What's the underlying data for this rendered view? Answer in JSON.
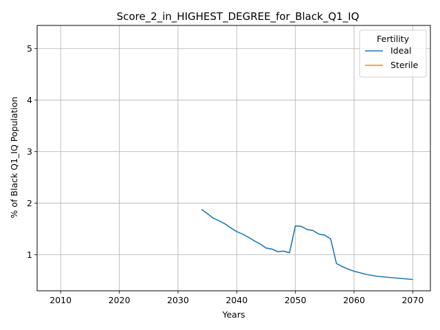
{
  "chart_data": {
    "type": "line",
    "title": "Score_2_in_HIGHEST_DEGREE_for_Black_Q1_IQ",
    "xlabel": "Years",
    "ylabel": "% of Black Q1_IQ Population",
    "xlim": [
      2006,
      2073
    ],
    "ylim": [
      0.3,
      5.45
    ],
    "xticks": [
      2010,
      2020,
      2030,
      2040,
      2050,
      2060,
      2070
    ],
    "yticks": [
      1,
      2,
      3,
      4,
      5
    ],
    "grid": true,
    "legend": {
      "title": "Fertility",
      "position": "top-right"
    },
    "series": [
      {
        "name": "Ideal",
        "color": "#1f77b4",
        "x": [
          2034,
          2035,
          2036,
          2037,
          2038,
          2039,
          2040,
          2041,
          2042,
          2043,
          2044,
          2045,
          2046,
          2047,
          2048,
          2049,
          2050,
          2051,
          2052,
          2053,
          2054,
          2055,
          2056,
          2057,
          2058,
          2059,
          2060,
          2061,
          2062,
          2063,
          2064,
          2065,
          2066,
          2067,
          2068,
          2069,
          2070
        ],
        "y": [
          1.88,
          1.8,
          1.71,
          1.66,
          1.6,
          1.52,
          1.45,
          1.4,
          1.34,
          1.27,
          1.21,
          1.13,
          1.11,
          1.06,
          1.07,
          1.04,
          1.56,
          1.55,
          1.49,
          1.47,
          1.4,
          1.38,
          1.31,
          0.83,
          0.77,
          0.72,
          0.68,
          0.65,
          0.62,
          0.6,
          0.58,
          0.57,
          0.56,
          0.55,
          0.54,
          0.53,
          0.52
        ]
      },
      {
        "name": "Sterile",
        "color": "#ff7f0e",
        "x": [],
        "y": []
      }
    ]
  }
}
